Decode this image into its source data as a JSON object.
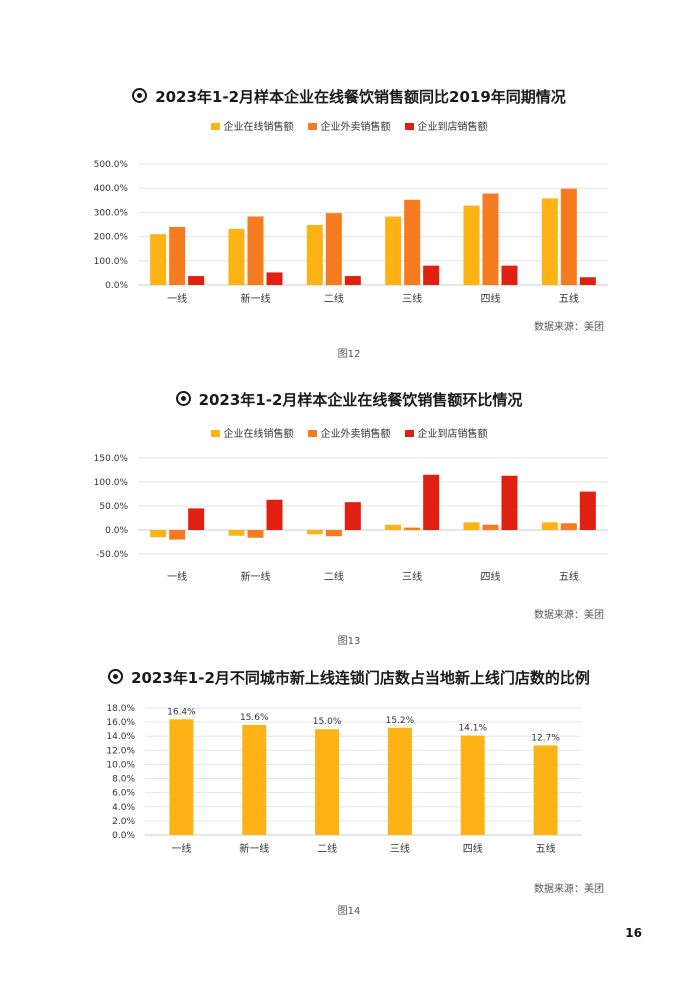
{
  "page_number": "16",
  "charts": [
    {
      "title": "2023年1-2月样本企业在线餐饮销售额同比2019年同期情况",
      "source": "数据来源：美团",
      "caption": "图12"
    },
    {
      "title": "2023年1-2月样本企业在线餐饮销售额环比情况",
      "source": "数据来源：美团",
      "caption": "图13"
    },
    {
      "title": "2023年1-2月不同城市新上线连锁门店数占当地新上线门店数的比例",
      "source": "数据来源：美团",
      "caption": "图14"
    }
  ],
  "chart_data": [
    {
      "type": "bar",
      "title": "2023年1-2月样本企业在线餐饮销售额同比2019年同期情况",
      "categories": [
        "一线",
        "新一线",
        "二线",
        "三线",
        "四线",
        "五线"
      ],
      "series": [
        {
          "name": "企业在线销售额",
          "color": "#FDB316",
          "values": [
            210,
            232,
            248,
            283,
            328,
            358
          ]
        },
        {
          "name": "企业外卖销售额",
          "color": "#F57A20",
          "values": [
            240,
            283,
            297,
            352,
            378,
            398
          ]
        },
        {
          "name": "企业到店销售额",
          "color": "#E02010",
          "values": [
            37,
            52,
            37,
            80,
            80,
            32
          ]
        }
      ],
      "yticks": [
        "0.0%",
        "100.0%",
        "200.0%",
        "300.0%",
        "400.0%",
        "500.0%"
      ],
      "ylim": [
        0,
        500
      ],
      "legend_position": "top",
      "grid": true
    },
    {
      "type": "bar",
      "title": "2023年1-2月样本企业在线餐饮销售额环比情况",
      "categories": [
        "一线",
        "新一线",
        "二线",
        "三线",
        "四线",
        "五线"
      ],
      "series": [
        {
          "name": "企业在线销售额",
          "color": "#FDB316",
          "values": [
            -15,
            -12,
            -9,
            11,
            16,
            16
          ]
        },
        {
          "name": "企业外卖销售额",
          "color": "#F57A20",
          "values": [
            -20,
            -16,
            -13,
            5,
            11,
            14
          ]
        },
        {
          "name": "企业到店销售额",
          "color": "#E02010",
          "values": [
            45,
            63,
            58,
            115,
            113,
            80
          ]
        }
      ],
      "yticks": [
        "-50.0%",
        "0.0%",
        "50.0%",
        "100.0%",
        "150.0%"
      ],
      "ylim": [
        -50,
        150
      ],
      "legend_position": "top",
      "grid": true
    },
    {
      "type": "bar",
      "title": "2023年1-2月不同城市新上线连锁门店数占当地新上线门店数的比例",
      "categories": [
        "一线",
        "新一线",
        "二线",
        "三线",
        "四线",
        "五线"
      ],
      "series": [
        {
          "color": "#FDB316",
          "values": [
            16.4,
            15.6,
            15.0,
            15.2,
            14.1,
            12.7
          ],
          "labels": [
            "16.4%",
            "15.6%",
            "15.0%",
            "15.2%",
            "14.1%",
            "12.7%"
          ]
        }
      ],
      "yticks": [
        "0.0%",
        "2.0%",
        "4.0%",
        "6.0%",
        "8.0%",
        "10.0%",
        "12.0%",
        "14.0%",
        "16.0%",
        "18.0%"
      ],
      "ylim": [
        0,
        18
      ],
      "legend_position": "none",
      "grid": true
    }
  ]
}
